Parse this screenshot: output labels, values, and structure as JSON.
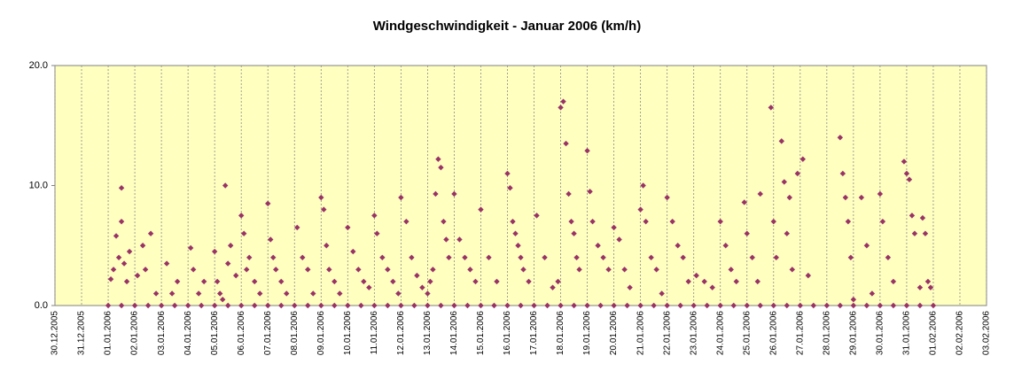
{
  "chart_data": {
    "type": "scatter",
    "title": "Windgeschwindigkeit - Januar 2006 (km/h)",
    "color": "#993366",
    "background": "#ffffc0",
    "grid": true,
    "xlim": [
      0,
      35
    ],
    "ylim": [
      0,
      20
    ],
    "yticks": [
      {
        "value": 0,
        "label": "0.0"
      },
      {
        "value": 10,
        "label": "10.0"
      },
      {
        "value": 20,
        "label": "20.0"
      }
    ],
    "xticks": [
      {
        "value": 0,
        "label": "30.12.2005"
      },
      {
        "value": 1,
        "label": "31.12.2005"
      },
      {
        "value": 2,
        "label": "01.01.2006"
      },
      {
        "value": 3,
        "label": "02.01.2006"
      },
      {
        "value": 4,
        "label": "03.01.2006"
      },
      {
        "value": 5,
        "label": "04.01.2006"
      },
      {
        "value": 6,
        "label": "05.01.2006"
      },
      {
        "value": 7,
        "label": "06.01.2006"
      },
      {
        "value": 8,
        "label": "07.01.2006"
      },
      {
        "value": 9,
        "label": "08.01.2006"
      },
      {
        "value": 10,
        "label": "09.01.2006"
      },
      {
        "value": 11,
        "label": "10.01.2006"
      },
      {
        "value": 12,
        "label": "11.01.2006"
      },
      {
        "value": 13,
        "label": "12.01.2006"
      },
      {
        "value": 14,
        "label": "13.01.2006"
      },
      {
        "value": 15,
        "label": "14.01.2006"
      },
      {
        "value": 16,
        "label": "15.01.2006"
      },
      {
        "value": 17,
        "label": "16.01.2006"
      },
      {
        "value": 18,
        "label": "17.01.2006"
      },
      {
        "value": 19,
        "label": "18.01.2006"
      },
      {
        "value": 20,
        "label": "19.01.2006"
      },
      {
        "value": 21,
        "label": "20.01.2006"
      },
      {
        "value": 22,
        "label": "21.01.2006"
      },
      {
        "value": 23,
        "label": "22.01.2006"
      },
      {
        "value": 24,
        "label": "23.01.2006"
      },
      {
        "value": 25,
        "label": "24.01.2006"
      },
      {
        "value": 26,
        "label": "25.01.2006"
      },
      {
        "value": 27,
        "label": "26.01.2006"
      },
      {
        "value": 28,
        "label": "27.01.2006"
      },
      {
        "value": 29,
        "label": "28.01.2006"
      },
      {
        "value": 30,
        "label": "29.01.2006"
      },
      {
        "value": 31,
        "label": "30.01.2006"
      },
      {
        "value": 32,
        "label": "31.01.2006"
      },
      {
        "value": 33,
        "label": "01.02.2006"
      },
      {
        "value": 34,
        "label": "02.02.2006"
      },
      {
        "value": 35,
        "label": "03.02.2006"
      }
    ],
    "x": [
      2.0,
      2.5,
      3.0,
      3.5,
      4.0,
      4.5,
      5.0,
      5.5,
      6.0,
      6.5,
      7.0,
      7.5,
      8.0,
      8.5,
      9.0,
      9.5,
      10.0,
      10.5,
      11.0,
      11.5,
      12.0,
      12.5,
      13.0,
      13.5,
      14.0,
      14.5,
      15.0,
      15.5,
      16.0,
      16.5,
      17.0,
      17.5,
      18.0,
      18.5,
      19.0,
      19.5,
      20.0,
      20.5,
      21.0,
      21.5,
      22.0,
      22.5,
      23.0,
      23.5,
      24.0,
      24.5,
      25.0,
      25.5,
      26.0,
      26.5,
      27.0,
      27.5,
      28.0,
      28.5,
      29.0,
      29.5,
      30.0,
      30.5,
      31.0,
      31.5,
      32.0,
      32.5,
      33.0,
      2.1,
      2.2,
      2.3,
      2.4,
      2.5,
      2.5,
      2.6,
      2.7,
      2.8,
      3.1,
      3.3,
      3.4,
      3.6,
      3.8,
      4.2,
      4.4,
      4.6,
      5.1,
      5.2,
      5.4,
      5.6,
      6.0,
      6.1,
      6.2,
      6.3,
      6.4,
      6.5,
      6.6,
      6.8,
      7.0,
      7.1,
      7.2,
      7.3,
      7.5,
      7.7,
      8.0,
      8.1,
      8.2,
      8.3,
      8.5,
      8.7,
      9.1,
      9.3,
      9.5,
      9.7,
      10.0,
      10.1,
      10.2,
      10.3,
      10.5,
      10.7,
      11.0,
      11.2,
      11.4,
      11.6,
      11.8,
      12.0,
      12.1,
      12.3,
      12.5,
      12.7,
      12.9,
      13.0,
      13.2,
      13.4,
      13.6,
      13.8,
      14.0,
      14.1,
      14.2,
      14.3,
      14.4,
      14.5,
      14.6,
      14.7,
      14.8,
      15.0,
      15.2,
      15.4,
      15.6,
      15.8,
      16.0,
      16.3,
      16.6,
      17.0,
      17.1,
      17.2,
      17.3,
      17.4,
      17.5,
      17.6,
      17.8,
      18.1,
      18.4,
      18.7,
      18.9,
      19.0,
      19.1,
      19.2,
      19.3,
      19.4,
      19.5,
      19.6,
      19.7,
      20.0,
      20.1,
      20.2,
      20.4,
      20.6,
      20.8,
      21.0,
      21.2,
      21.4,
      21.6,
      22.0,
      22.1,
      22.2,
      22.4,
      22.6,
      22.8,
      23.0,
      23.2,
      23.4,
      23.6,
      23.8,
      24.1,
      24.4,
      24.7,
      25.0,
      25.2,
      25.4,
      25.6,
      25.9,
      26.0,
      26.2,
      26.4,
      26.5,
      26.9,
      27.0,
      27.1,
      27.3,
      27.4,
      27.5,
      27.6,
      27.7,
      27.9,
      28.1,
      28.3,
      29.5,
      29.6,
      29.7,
      29.8,
      29.9,
      30.0,
      30.3,
      30.5,
      30.7,
      31.0,
      31.1,
      31.3,
      31.5,
      31.9,
      32.0,
      32.1,
      32.2,
      32.3,
      32.5,
      32.6,
      32.7,
      32.8,
      32.9
    ],
    "values": [
      0,
      0,
      0,
      0,
      0,
      0,
      0,
      0,
      0,
      0,
      0,
      0,
      0,
      0,
      0,
      0,
      0,
      0,
      0,
      0,
      0,
      0,
      0,
      0,
      0,
      0,
      0,
      0,
      0,
      0,
      0,
      0,
      0,
      0,
      0,
      0,
      0,
      0,
      0,
      0,
      0,
      0,
      0,
      0,
      0,
      0,
      0,
      0,
      0,
      0,
      0,
      0,
      0,
      0,
      0,
      0,
      0,
      0,
      0,
      0,
      0,
      0,
      0,
      2.2,
      3.0,
      5.8,
      4.0,
      9.8,
      7.0,
      3.5,
      2.0,
      4.5,
      2.5,
      5.0,
      3.0,
      6.0,
      1.0,
      3.5,
      1.0,
      2.0,
      4.8,
      3.0,
      1.0,
      2.0,
      4.5,
      2.0,
      1.0,
      0.5,
      10.0,
      3.5,
      5.0,
      2.5,
      7.5,
      6.0,
      3.0,
      4.0,
      2.0,
      1.0,
      8.5,
      5.5,
      4.0,
      3.0,
      2.0,
      1.0,
      6.5,
      4.0,
      3.0,
      1.0,
      9.0,
      8.0,
      5.0,
      3.0,
      2.0,
      1.0,
      6.5,
      4.5,
      3.0,
      2.0,
      1.5,
      7.5,
      6.0,
      4.0,
      3.0,
      2.0,
      1.0,
      9.0,
      7.0,
      4.0,
      2.5,
      1.5,
      1.0,
      2.0,
      3.0,
      9.3,
      12.2,
      11.5,
      7.0,
      5.5,
      4.0,
      9.3,
      5.5,
      4.0,
      3.0,
      2.0,
      8.0,
      4.0,
      2.0,
      11.0,
      9.8,
      7.0,
      6.0,
      5.0,
      4.0,
      3.0,
      2.0,
      7.5,
      4.0,
      1.5,
      2.0,
      16.5,
      17.0,
      13.5,
      9.3,
      7.0,
      6.0,
      4.0,
      3.0,
      12.9,
      9.5,
      7.0,
      5.0,
      4.0,
      3.0,
      6.5,
      5.5,
      3.0,
      1.5,
      8.0,
      10.0,
      7.0,
      4.0,
      3.0,
      1.0,
      9.0,
      7.0,
      5.0,
      4.0,
      2.0,
      2.5,
      2.0,
      1.5,
      7.0,
      5.0,
      3.0,
      2.0,
      8.6,
      6.0,
      4.0,
      2.0,
      9.3,
      16.5,
      7.0,
      4.0,
      13.7,
      10.3,
      6.0,
      9.0,
      3.0,
      11.0,
      12.2,
      2.5,
      14.0,
      11.0,
      9.0,
      7.0,
      4.0,
      0.5,
      9.0,
      5.0,
      1.0,
      9.3,
      7.0,
      4.0,
      2.0,
      12.0,
      11.0,
      10.5,
      7.5,
      6.0,
      1.5,
      7.3,
      6.0,
      2.0,
      1.5
    ]
  }
}
